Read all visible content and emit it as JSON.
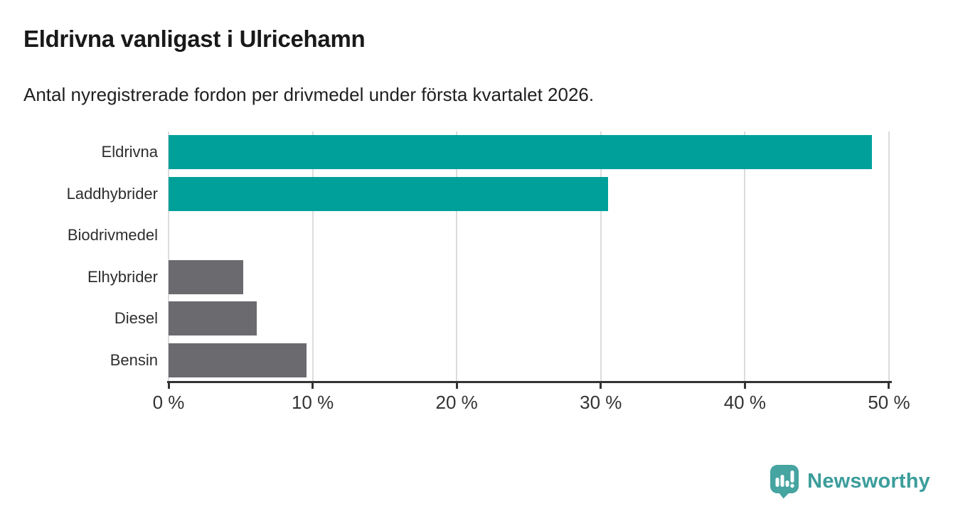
{
  "chart_data": {
    "type": "bar",
    "orientation": "horizontal",
    "title": "Eldrivna vanligast i Ulricehamn",
    "subtitle": "Antal nyregistrerade fordon per drivmedel under första kvartalet 2026.",
    "categories": [
      "Eldrivna",
      "Laddhybrider",
      "Biodrivmedel",
      "Elhybrider",
      "Diesel",
      "Bensin"
    ],
    "values": [
      48.8,
      30.5,
      0,
      5.2,
      6.1,
      9.6
    ],
    "unit": "%",
    "xlabel": "",
    "ylabel": "",
    "xlim": [
      0,
      50.15
    ],
    "x_tick_values": [
      0,
      10,
      20,
      30,
      40,
      50
    ],
    "x_tick_labels": [
      "0 %",
      "10 %",
      "20 %",
      "30 %",
      "40 %",
      "50 %"
    ],
    "grid": "vertical-gridlines-on",
    "legend": "none",
    "bar_colors": [
      "#00A09A",
      "#00A09A",
      "#6A6A6F",
      "#6A6A6F",
      "#6A6A6F",
      "#6A6A6F"
    ]
  },
  "colors": {
    "background": "#FFFFFF",
    "title_text": "#191919",
    "subtitle_text": "#1F1F1F",
    "category_label": "#2E2E2E",
    "tick_label": "#333333",
    "axis": "#333333",
    "gridline": "#DCDCDC",
    "accent_teal": "#00A09A",
    "neutral_gray": "#6A6A6F"
  },
  "footer": {
    "brand": "Newsworthy",
    "icon": "newsworthy-speech-bubble-bar-chart-icon",
    "icon_color": "#46A4A1",
    "text_color": "#3B9D9B"
  }
}
